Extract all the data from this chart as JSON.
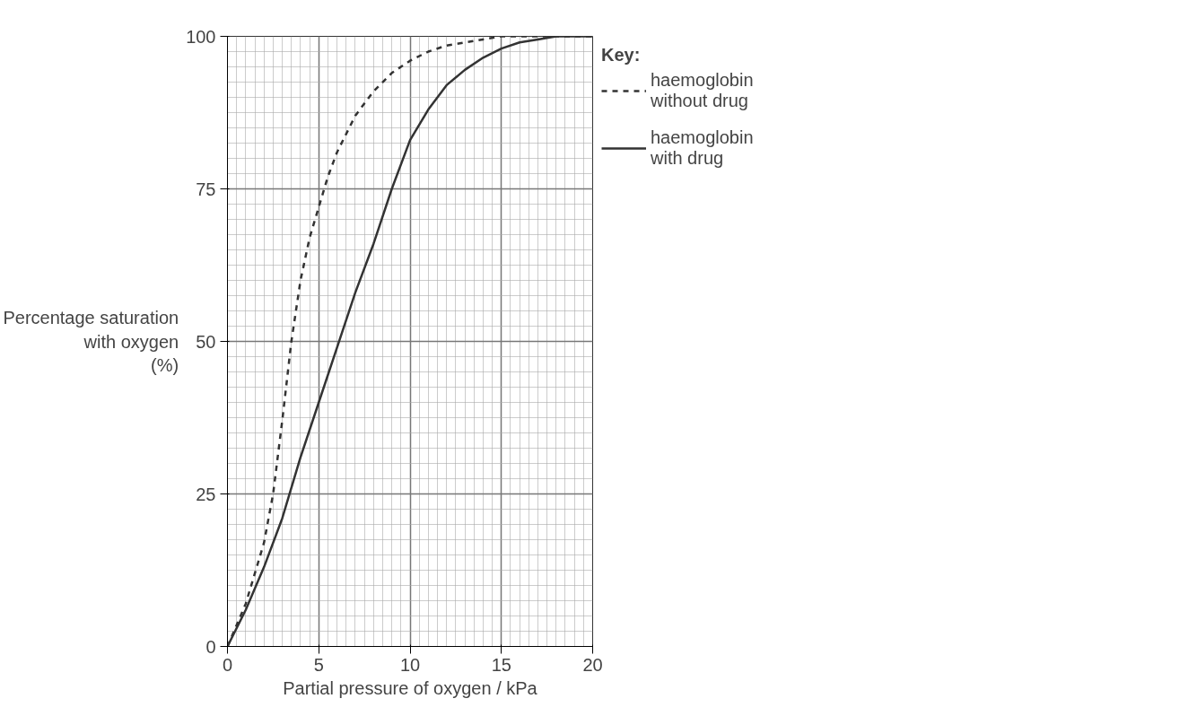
{
  "chart_data": {
    "type": "line",
    "xlabel": "Partial pressure of oxygen / kPa",
    "ylabel": "Percentage saturation\nwith oxygen\n(%)",
    "legend_title": "Key:",
    "legend": "top right",
    "grid": true,
    "xlim": [
      0,
      20
    ],
    "ylim": [
      0,
      100
    ],
    "xticks": [
      0,
      5,
      10,
      15,
      20
    ],
    "yticks": [
      0,
      25,
      50,
      75,
      100
    ],
    "series": [
      {
        "name": "haemoglobin\nwithout drug",
        "color": "#333333",
        "line_style": "dashed",
        "x": [
          0,
          1,
          2,
          2.5,
          3,
          3.5,
          4,
          4.5,
          5,
          5.5,
          6,
          7,
          8,
          9,
          10,
          11,
          12,
          13,
          14,
          15,
          16,
          17,
          18,
          19,
          20
        ],
        "values": [
          0,
          7,
          17,
          25,
          37,
          50,
          60,
          67,
          72,
          77,
          81,
          87,
          91,
          94,
          96,
          97.5,
          98.5,
          99,
          99.5,
          100,
          100,
          100,
          100,
          100,
          100
        ]
      },
      {
        "name": "haemoglobin\nwith drug",
        "color": "#333333",
        "line_style": "solid",
        "x": [
          0,
          1,
          2,
          3,
          4,
          5,
          6,
          7,
          8,
          9,
          10,
          11,
          12,
          13,
          14,
          15,
          16,
          17,
          18,
          19,
          20
        ],
        "values": [
          0,
          6,
          13,
          21,
          31,
          40,
          49,
          58,
          66,
          75,
          83,
          88,
          92,
          94.5,
          96.5,
          98,
          99,
          99.5,
          100,
          100,
          100
        ]
      }
    ]
  }
}
